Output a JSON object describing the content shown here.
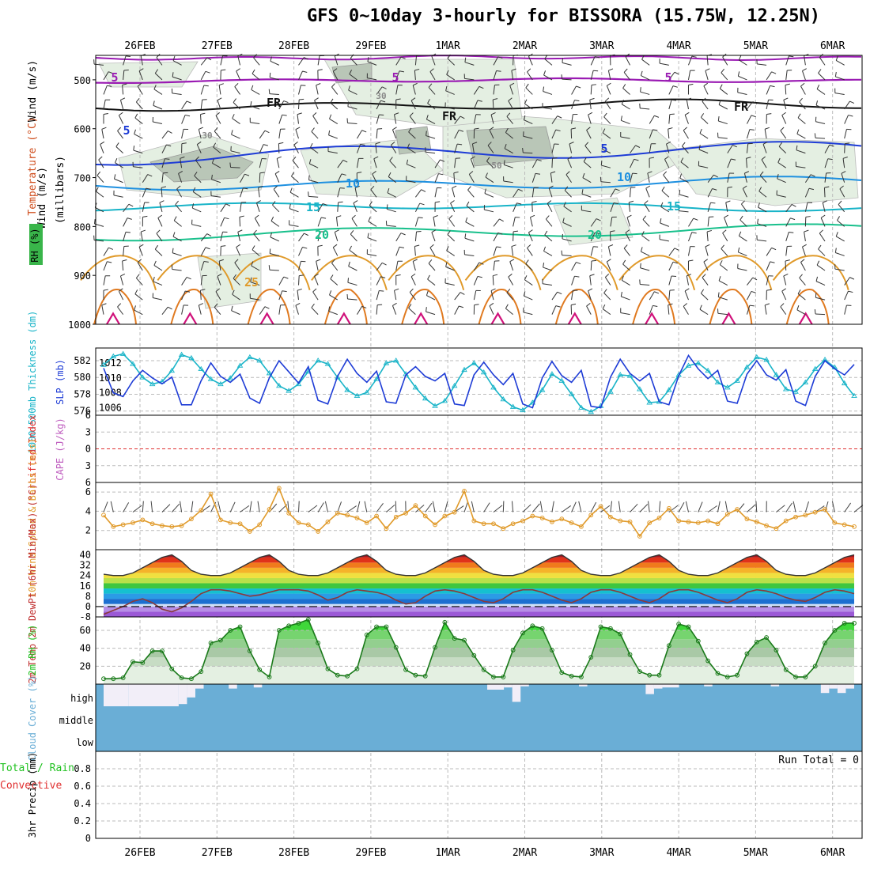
{
  "title": "GFS 0~10day 3-hourly for BISSORA (15.75W, 12.25N)",
  "dates": [
    "26FEB",
    "27FEB",
    "28FEB",
    "29FEB",
    "1MAR",
    "2MAR",
    "3MAR",
    "4MAR",
    "5MAR",
    "6MAR"
  ],
  "colors": {
    "purple": "#9a1bb3",
    "blue": "#1e3cd6",
    "cyan": "#19b4c8",
    "teal": "#19c08c",
    "orange": "#e09a2a",
    "darkorange": "#e07a20",
    "magenta": "#d0107a",
    "green": "#21c221",
    "cloud": "#6aaed6",
    "red": "#e03030"
  },
  "chart_data": [
    {
      "type": "contour",
      "panel": "upper-air",
      "ylabel_parts": [
        "Wind (m/s)",
        "Temperature (°C)",
        "RH (%)"
      ],
      "units_label": "(millibars)",
      "yticks": [
        500,
        600,
        700,
        800,
        900,
        1000
      ],
      "ylim": [
        1000,
        450
      ],
      "contour_labels": [
        "5",
        "5",
        "5",
        "FR",
        "FR",
        "FR",
        "5",
        "5",
        "10",
        "10",
        "15",
        "15",
        "20",
        "20",
        "25",
        "30",
        "30",
        "50"
      ]
    },
    {
      "type": "line",
      "panel": "thickness-slp",
      "ylabel_left": "1000-500mb Thickness (dm)",
      "ylabel_right": "SLP (mb)",
      "yticks_left": [
        576,
        578,
        580,
        582
      ],
      "yticks_right": [
        1006,
        1008,
        1010,
        1012
      ],
      "series": [
        {
          "name": "Thickness",
          "values": [
            581.5,
            582.5,
            582.8,
            581.6,
            580.0,
            579.2,
            579.5,
            580.8,
            582.7,
            582.3,
            581.0,
            579.8,
            579.2,
            579.9,
            581.4,
            582.4,
            582.0,
            580.5,
            579.0,
            578.4,
            579.2,
            580.7,
            582.0,
            581.6,
            580.0,
            578.5,
            577.8,
            578.2,
            579.8,
            581.7,
            582.0,
            580.4,
            578.8,
            577.5,
            576.6,
            577.2,
            579.0,
            580.9,
            581.7,
            580.6,
            578.8,
            577.4,
            576.5,
            576.1,
            577.0,
            578.5,
            580.4,
            579.6,
            578.0,
            576.4,
            575.9,
            576.6,
            578.3,
            580.3,
            580.2,
            578.6,
            577.0,
            577.1,
            578.5,
            580.3,
            581.4,
            581.7,
            580.8,
            579.4,
            578.8,
            579.6,
            581.2,
            582.4,
            582.1,
            580.3,
            578.6,
            578.3,
            579.4,
            581.0,
            582.1,
            581.2,
            579.3,
            577.8
          ]
        },
        {
          "name": "SLP",
          "values": [
            1011.3,
            1008.0,
            1007.5,
            1009.6,
            1011.0,
            1010.0,
            1009.2,
            1010.1,
            1006.4,
            1006.4,
            1009.6,
            1012.0,
            1010.2,
            1009.4,
            1010.5,
            1007.3,
            1006.6,
            1010.0,
            1012.3,
            1010.8,
            1009.3,
            1011.5,
            1007.0,
            1006.5,
            1010.2,
            1012.5,
            1010.6,
            1009.4,
            1010.9,
            1006.8,
            1006.6,
            1010.4,
            1011.5,
            1010.2,
            1009.6,
            1010.6,
            1006.5,
            1006.3,
            1010.4,
            1012.1,
            1010.4,
            1009.1,
            1010.6,
            1006.5,
            1006.0,
            1010.0,
            1012.2,
            1010.3,
            1009.4,
            1011.0,
            1006.2,
            1006.0,
            1010.1,
            1012.5,
            1010.6,
            1009.6,
            1010.6,
            1006.8,
            1006.4,
            1010.3,
            1013.0,
            1011.2,
            1009.9,
            1011.0,
            1006.9,
            1006.6,
            1010.5,
            1012.3,
            1010.4,
            1009.7,
            1011.1,
            1006.9,
            1006.3,
            1010.2,
            1012.3,
            1011.2,
            1010.4,
            1011.8
          ]
        }
      ]
    },
    {
      "type": "line",
      "panel": "stability",
      "ylabel_left": "Lifted Index",
      "ylabel_right": "CAPE (J/kg)",
      "yticks": [
        "6",
        "3",
        "0",
        "3",
        "6"
      ],
      "series": [
        {
          "name": "Lifted Index",
          "values": [
            0
          ]
        }
      ]
    },
    {
      "type": "line",
      "panel": "surface-wind",
      "ylabel": "10m Wind Speed & Barbs (m/s)",
      "yticks": [
        2,
        4,
        6
      ],
      "ylim": [
        0,
        7
      ],
      "series": [
        {
          "name": "10m Wind Speed",
          "values": [
            3.6,
            2.4,
            2.6,
            2.8,
            3.1,
            2.7,
            2.5,
            2.4,
            2.5,
            3.2,
            4.1,
            5.8,
            3.1,
            2.8,
            2.7,
            1.9,
            2.6,
            4.2,
            6.4,
            3.8,
            2.8,
            2.6,
            1.9,
            2.9,
            3.8,
            3.6,
            3.3,
            2.8,
            3.5,
            2.2,
            3.4,
            3.8,
            4.6,
            3.5,
            2.6,
            3.5,
            3.9,
            6.1,
            3.0,
            2.7,
            2.7,
            2.2,
            2.7,
            3.0,
            3.5,
            3.3,
            2.9,
            3.2,
            2.8,
            2.4,
            3.6,
            4.5,
            3.4,
            3.0,
            2.9,
            1.4,
            2.8,
            3.3,
            4.3,
            3.0,
            2.9,
            2.8,
            3.0,
            2.7,
            3.7,
            4.2,
            3.2,
            2.9,
            2.5,
            2.2,
            3.0,
            3.4,
            3.6,
            3.9,
            4.2,
            2.8,
            2.6,
            2.4
          ]
        }
      ]
    },
    {
      "type": "area",
      "panel": "temperature",
      "ylabel": "2m Temp 2m DewPt (6hr Min/Max) (°C)",
      "yticks": [
        "40",
        "32",
        "24",
        "16",
        "8",
        "0",
        "-8"
      ],
      "ylim": [
        -8,
        44
      ],
      "series": [
        {
          "name": "2m Temp",
          "values": [
            25,
            24,
            24,
            26,
            30,
            34,
            38,
            40,
            35,
            28,
            25,
            24,
            24,
            26,
            30,
            34,
            38,
            40,
            35,
            28,
            25,
            24,
            24,
            26,
            30,
            34,
            38,
            40,
            35,
            28,
            25,
            24,
            24,
            26,
            30,
            34,
            38,
            40,
            35,
            28,
            25,
            24,
            24,
            26,
            30,
            34,
            38,
            40,
            35,
            28,
            25,
            24,
            24,
            26,
            30,
            34,
            38,
            40,
            35,
            28,
            25,
            24,
            24,
            26,
            30,
            34,
            38,
            40,
            35,
            28,
            25,
            24,
            24,
            26,
            30,
            34,
            38,
            40
          ]
        },
        {
          "name": "2m DewPt",
          "values": [
            -6,
            -3,
            0,
            4,
            6,
            3,
            -2,
            -4,
            -1,
            4,
            10,
            13,
            13,
            12,
            10,
            8,
            9,
            11,
            13,
            13,
            13,
            12,
            9,
            5,
            7,
            11,
            13,
            12,
            11,
            9,
            5,
            2,
            3,
            8,
            12,
            13,
            12,
            10,
            7,
            4,
            3,
            6,
            11,
            13,
            13,
            11,
            8,
            5,
            3,
            6,
            11,
            13,
            13,
            11,
            8,
            5,
            3,
            6,
            11,
            13,
            13,
            11,
            8,
            5,
            3,
            6,
            11,
            13,
            12,
            10,
            7,
            5,
            4,
            7,
            11,
            13,
            12,
            10
          ]
        }
      ]
    },
    {
      "type": "area",
      "panel": "humidity",
      "ylabel": "2m RH (%)",
      "yticks": [
        20,
        40,
        60
      ],
      "ylim": [
        0,
        75
      ],
      "series": [
        {
          "name": "2m RH",
          "values": [
            6,
            6,
            7,
            25,
            24,
            37,
            37,
            17,
            7,
            6,
            14,
            46,
            49,
            60,
            64,
            37,
            16,
            8,
            60,
            65,
            68,
            72,
            46,
            17,
            10,
            9,
            17,
            55,
            64,
            64,
            41,
            16,
            10,
            9,
            41,
            69,
            51,
            49,
            32,
            16,
            8,
            8,
            38,
            57,
            65,
            62,
            38,
            13,
            9,
            8,
            30,
            64,
            62,
            56,
            33,
            14,
            10,
            10,
            43,
            67,
            64,
            48,
            26,
            12,
            8,
            10,
            34,
            47,
            52,
            38,
            16,
            8,
            8,
            20,
            46,
            60,
            68,
            68
          ]
        }
      ]
    },
    {
      "type": "bar",
      "panel": "cloud",
      "ylabel": "Cloud Cover (%)",
      "yticklabels": [
        "high",
        "middle",
        "low"
      ]
    },
    {
      "type": "bar",
      "panel": "precip",
      "ylabel_parts": [
        "Total / Rain",
        "Convective",
        "3hr Precip (mm)"
      ],
      "yticks": [
        "0",
        "0.2",
        "0.4",
        "0.6",
        "0.8"
      ],
      "ylim": [
        0,
        1
      ],
      "annotation": "Run Total = 0",
      "values": []
    }
  ]
}
